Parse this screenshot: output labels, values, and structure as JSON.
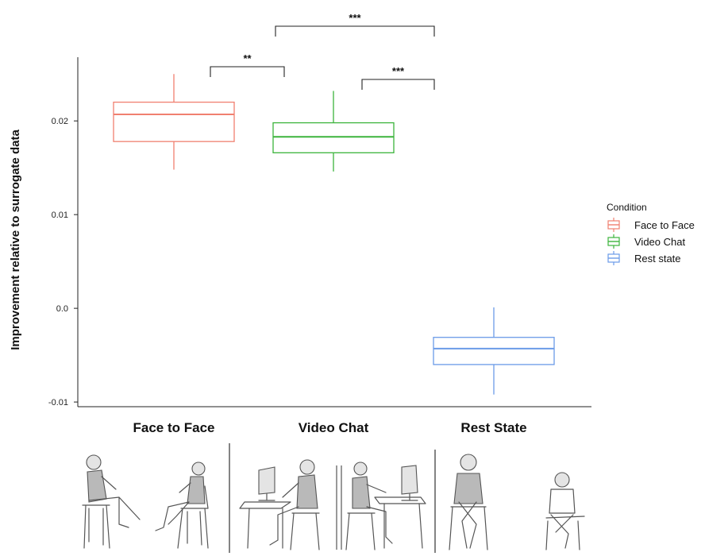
{
  "chart_data": {
    "type": "box",
    "ylabel": "Improvement relative to surrogate data",
    "xlabel": "",
    "ylim": [
      -0.0105,
      0.0268
    ],
    "yticks": [
      {
        "value": 0.02,
        "label": "0.02"
      },
      {
        "value": 0.01,
        "label": "0.01"
      },
      {
        "value": 0.0,
        "label": "0.0"
      },
      {
        "value": -0.01,
        "label": "-0.01"
      }
    ],
    "categories": [
      "Face to Face",
      "Video Chat",
      "Rest State"
    ],
    "series": [
      {
        "name": "Face to Face",
        "color": "#f08070",
        "min": 0.0148,
        "q1": 0.0178,
        "median": 0.0207,
        "q3": 0.022,
        "max": 0.025
      },
      {
        "name": "Video Chat",
        "color": "#3cb43c",
        "min": 0.0146,
        "q1": 0.0166,
        "median": 0.0183,
        "q3": 0.0198,
        "max": 0.0232
      },
      {
        "name": "Rest state",
        "color": "#6b9be8",
        "min": -0.0092,
        "q1": -0.006,
        "median": -0.0043,
        "q3": -0.0031,
        "max": 0.0001
      }
    ],
    "legend": {
      "title": "Condition",
      "position": "right"
    },
    "significance": [
      {
        "from": 0,
        "to": 1,
        "label": "**"
      },
      {
        "from": 1,
        "to": 2,
        "label": "***"
      },
      {
        "from": 1,
        "to": 2,
        "label": "***",
        "tier": 2
      }
    ],
    "grid": false
  },
  "illustrations": [
    {
      "icon": "two-people-sitting-facing-icon"
    },
    {
      "icon": "two-people-video-chat-icon"
    },
    {
      "icon": "two-people-rest-state-icon"
    }
  ]
}
